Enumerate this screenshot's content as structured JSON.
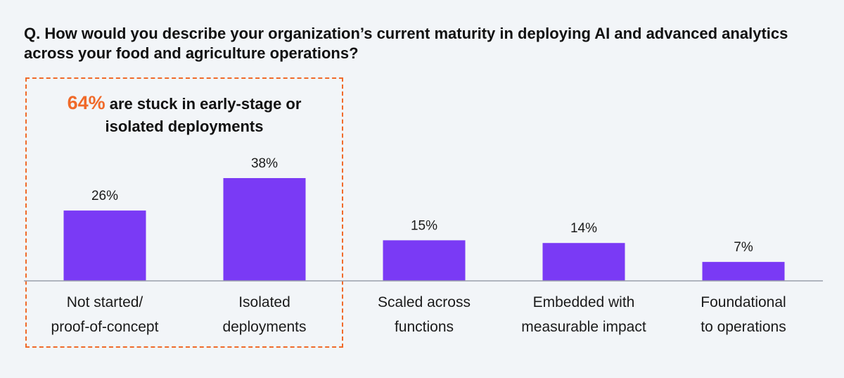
{
  "title": "Q. How would you describe your organization’s current maturity in deploying AI and advanced analytics across your food and agriculture operations?",
  "callout": {
    "highlight": "64%",
    "text_line1": " are stuck in early-stage or",
    "text_line2": "isolated deployments"
  },
  "colors": {
    "bar": "#7a3af5",
    "accent": "#f06a2a",
    "axis": "#9aa0aa",
    "background": "#f2f5f8"
  },
  "chart_data": {
    "type": "bar",
    "categories": [
      [
        "Not started/",
        "proof-of-concept"
      ],
      [
        "Isolated",
        "deployments"
      ],
      [
        "Scaled across",
        "functions"
      ],
      [
        "Embedded with",
        "measurable impact"
      ],
      [
        "Foundational",
        "to operations"
      ]
    ],
    "values": [
      26,
      38,
      15,
      14,
      7
    ],
    "value_labels": [
      "26%",
      "38%",
      "15%",
      "14%",
      "7%"
    ],
    "title": "",
    "xlabel": "",
    "ylabel": "",
    "ylim": [
      0,
      40
    ],
    "grid": false,
    "legend": "none"
  }
}
